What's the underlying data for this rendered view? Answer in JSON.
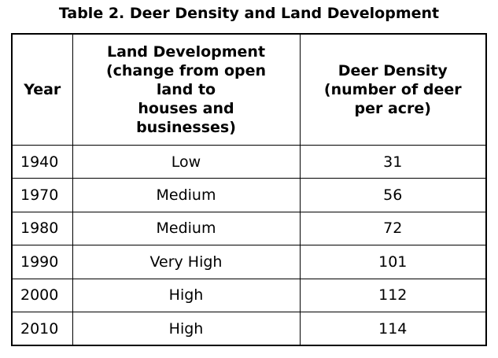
{
  "title": "Table 2. Deer Density and Land Development",
  "table": {
    "headers": [
      "Year",
      "Land Development\n(change from open\nland to\nhouses and\nbusinesses)",
      "Deer Density\n(number of deer\nper acre)"
    ],
    "rows": [
      [
        "1940",
        "Low",
        "31"
      ],
      [
        "1970",
        "Medium",
        "56"
      ],
      [
        "1980",
        "Medium",
        "72"
      ],
      [
        "1990",
        "Very High",
        "101"
      ],
      [
        "2000",
        "High",
        "112"
      ],
      [
        "2010",
        "High",
        "114"
      ]
    ]
  }
}
